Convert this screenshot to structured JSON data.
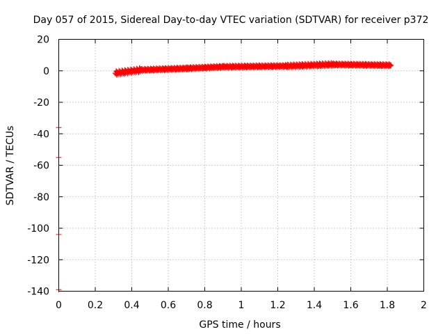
{
  "chart_data": {
    "type": "scatter",
    "title": "Day 057 of 2015, Sidereal Day-to-day VTEC variation (SDTVAR) for receiver p372",
    "xlabel": "GPS time / hours",
    "ylabel": "SDTVAR / TECUs",
    "xlim": [
      0,
      2
    ],
    "ylim": [
      -140,
      20
    ],
    "xticks": [
      "0",
      "0.2",
      "0.4",
      "0.6",
      "0.8",
      "1",
      "1.2",
      "1.4",
      "1.6",
      "1.8",
      "2"
    ],
    "xtick_values": [
      0,
      0.2,
      0.4,
      0.6,
      0.8,
      1.0,
      1.2,
      1.4,
      1.6,
      1.8,
      2.0
    ],
    "yticks": [
      "20",
      "0",
      "-20",
      "-40",
      "-60",
      "-80",
      "-100",
      "-120",
      "-140"
    ],
    "ytick_values": [
      20,
      0,
      -20,
      -40,
      -60,
      -80,
      -100,
      -120,
      -140
    ],
    "grid": true,
    "series": [
      {
        "name": "SDTVAR",
        "color": "#ff0000",
        "marker": "plus",
        "segments": [
          {
            "x_start": 0.31,
            "x_end": 0.45,
            "y_start": -1.5,
            "y_end": 0.5,
            "spread": 2.5
          },
          {
            "x_start": 0.45,
            "x_end": 0.7,
            "y_start": 0.5,
            "y_end": 1.5,
            "spread": 1.5
          },
          {
            "x_start": 0.7,
            "x_end": 0.9,
            "y_start": 1.5,
            "y_end": 2.5,
            "spread": 1.5
          },
          {
            "x_start": 0.9,
            "x_end": 1.25,
            "y_start": 2.5,
            "y_end": 3.0,
            "spread": 1.5
          },
          {
            "x_start": 1.25,
            "x_end": 1.5,
            "y_start": 3.0,
            "y_end": 4.0,
            "spread": 2.0
          },
          {
            "x_start": 1.5,
            "x_end": 1.82,
            "y_start": 4.0,
            "y_end": 3.5,
            "spread": 1.5
          }
        ],
        "outliers": [
          {
            "x": 0.0,
            "y": -36
          },
          {
            "x": 0.0,
            "y": -55
          },
          {
            "x": 0.0,
            "y": -104
          },
          {
            "x": 0.0,
            "y": -139
          }
        ]
      }
    ]
  }
}
